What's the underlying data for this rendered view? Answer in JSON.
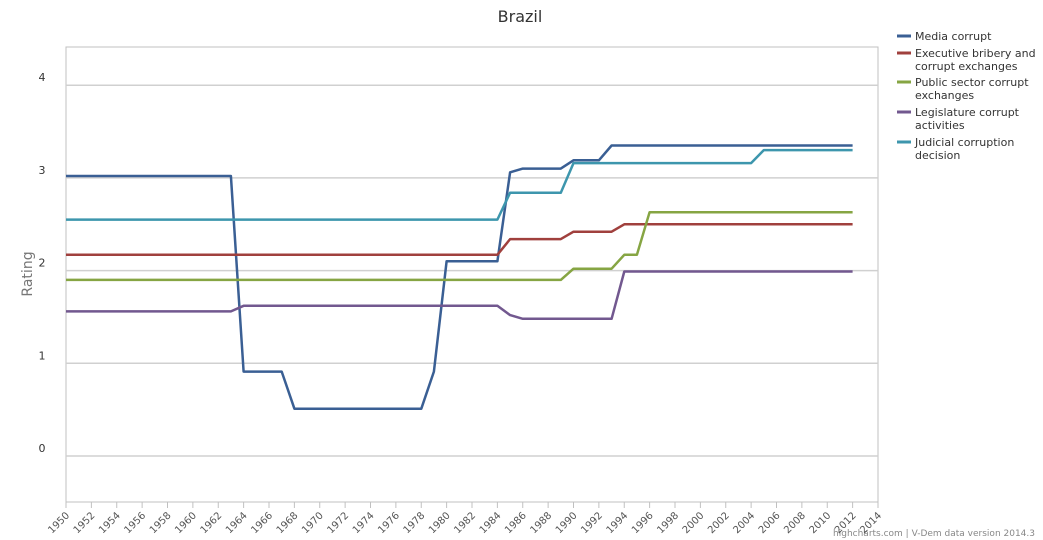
{
  "chart_data": {
    "type": "line",
    "title": "Brazil",
    "ylabel": "Rating",
    "xlabel": "",
    "xlim": [
      1950,
      2014
    ],
    "ylim": [
      -0.5,
      4.4
    ],
    "x_ticks": [
      1950,
      1952,
      1954,
      1956,
      1958,
      1960,
      1962,
      1964,
      1966,
      1968,
      1970,
      1972,
      1974,
      1976,
      1978,
      1980,
      1982,
      1984,
      1986,
      1988,
      1990,
      1992,
      1994,
      1996,
      1998,
      2000,
      2002,
      2004,
      2006,
      2008,
      2010,
      2012,
      2014
    ],
    "y_ticks": [
      0,
      1,
      2,
      3,
      4
    ],
    "grid": true,
    "legend_position": "right",
    "credit": "highcharts.com | V-Dem data version 2014.3",
    "series": [
      {
        "name": "Media corrupt",
        "color": "#3a5f94",
        "points": [
          [
            1950,
            3.02
          ],
          [
            1963,
            3.02
          ],
          [
            1964,
            0.91
          ],
          [
            1967,
            0.91
          ],
          [
            1968,
            0.51
          ],
          [
            1978,
            0.51
          ],
          [
            1979,
            0.91
          ],
          [
            1980,
            2.1
          ],
          [
            1984,
            2.1
          ],
          [
            1985,
            3.06
          ],
          [
            1986,
            3.1
          ],
          [
            1989,
            3.1
          ],
          [
            1990,
            3.19
          ],
          [
            1992,
            3.19
          ],
          [
            1993,
            3.35
          ],
          [
            2012,
            3.35
          ]
        ]
      },
      {
        "name": "Executive bribery and corrupt exchanges",
        "color": "#a0403d",
        "points": [
          [
            1950,
            2.17
          ],
          [
            1984,
            2.17
          ],
          [
            1985,
            2.34
          ],
          [
            1989,
            2.34
          ],
          [
            1990,
            2.42
          ],
          [
            1993,
            2.42
          ],
          [
            1994,
            2.5
          ],
          [
            2012,
            2.5
          ]
        ]
      },
      {
        "name": "Public sector corrupt exchanges",
        "color": "#86a543",
        "points": [
          [
            1950,
            1.9
          ],
          [
            1989,
            1.9
          ],
          [
            1990,
            2.02
          ],
          [
            1993,
            2.02
          ],
          [
            1994,
            2.17
          ],
          [
            1995,
            2.17
          ],
          [
            1996,
            2.63
          ],
          [
            2012,
            2.63
          ]
        ]
      },
      {
        "name": "Legislature corrupt activities",
        "color": "#72588f",
        "points": [
          [
            1950,
            1.56
          ],
          [
            1963,
            1.56
          ],
          [
            1964,
            1.62
          ],
          [
            1984,
            1.62
          ],
          [
            1985,
            1.52
          ],
          [
            1986,
            1.48
          ],
          [
            1993,
            1.48
          ],
          [
            1994,
            1.99
          ],
          [
            2012,
            1.99
          ]
        ]
      },
      {
        "name": "Judicial corruption decision",
        "color": "#3d96ad",
        "points": [
          [
            1950,
            2.55
          ],
          [
            1984,
            2.55
          ],
          [
            1985,
            2.84
          ],
          [
            1989,
            2.84
          ],
          [
            1990,
            3.16
          ],
          [
            2004,
            3.16
          ],
          [
            2005,
            3.3
          ],
          [
            2012,
            3.3
          ]
        ]
      }
    ]
  }
}
